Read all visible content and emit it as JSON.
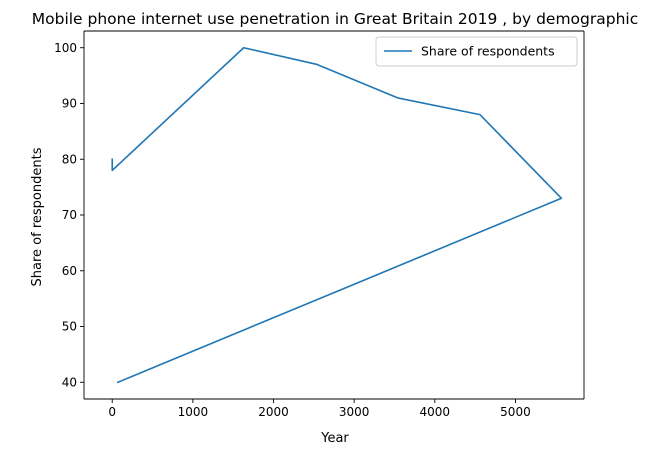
{
  "chart_data": {
    "type": "line",
    "title": "Mobile phone internet use penetration in Great Britain 2019 , by demographic",
    "xlabel": "Year",
    "ylabel": "Share of respondents",
    "xlim": [
      -350,
      5850
    ],
    "ylim": [
      37,
      103
    ],
    "xticks": [
      0,
      1000,
      2000,
      3000,
      4000,
      5000
    ],
    "yticks": [
      40,
      50,
      60,
      70,
      80,
      90,
      100
    ],
    "grid": false,
    "legend": {
      "position": "top-right"
    },
    "series": [
      {
        "name": "Share of respondents",
        "color": "#1f77b4",
        "points": [
          {
            "x": 0,
            "y": 80
          },
          {
            "x": 0,
            "y": 78
          },
          {
            "x": 1630,
            "y": 100
          },
          {
            "x": 2540,
            "y": 97
          },
          {
            "x": 3540,
            "y": 91
          },
          {
            "x": 4560,
            "y": 88
          },
          {
            "x": 5570,
            "y": 73
          },
          {
            "x": 70,
            "y": 40
          }
        ]
      }
    ]
  }
}
